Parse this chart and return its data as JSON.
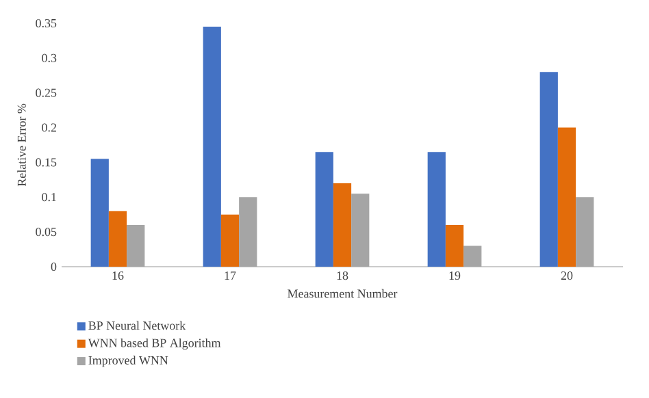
{
  "chart_data": {
    "type": "bar",
    "xlabel": "Measurement Number",
    "ylabel": "Relative Error %",
    "categories": [
      "16",
      "17",
      "18",
      "19",
      "20"
    ],
    "series": [
      {
        "name": "BP Neural Network",
        "color": "#4472c4",
        "values": [
          0.155,
          0.345,
          0.165,
          0.165,
          0.28
        ]
      },
      {
        "name": "WNN based BP Algorithm",
        "color": "#e36c0a",
        "values": [
          0.08,
          0.075,
          0.12,
          0.06,
          0.2
        ]
      },
      {
        "name": "Improved WNN",
        "color": "#a5a5a5",
        "values": [
          0.06,
          0.1,
          0.105,
          0.03,
          0.1
        ]
      }
    ],
    "ylim": [
      0,
      0.35
    ],
    "yticks": [
      0,
      0.05,
      0.1,
      0.15,
      0.2,
      0.25,
      0.3,
      0.35
    ],
    "grid": false,
    "legend": "bottom left"
  }
}
